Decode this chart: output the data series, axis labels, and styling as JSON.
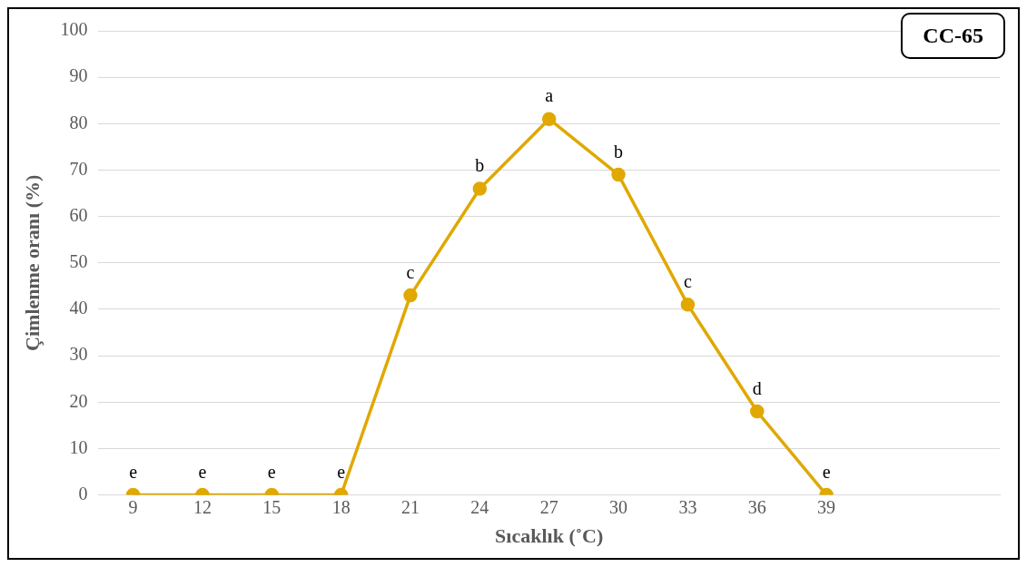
{
  "chart_data": {
    "type": "line",
    "xlabel": "Sıcaklık (˚C)",
    "ylabel": "Çimlenme oranı (%)",
    "x": [
      9,
      12,
      15,
      18,
      21,
      24,
      27,
      30,
      33,
      36,
      39
    ],
    "series": [
      {
        "color": "#e0a800",
        "values": [
          0,
          0,
          0,
          0,
          43,
          66,
          81,
          69,
          41,
          18,
          0
        ]
      }
    ],
    "xlim": [
      7.5,
      46.5
    ],
    "xticks": [
      9,
      12,
      15,
      18,
      21,
      24,
      27,
      30,
      33,
      36,
      39
    ],
    "ylim": [
      0,
      100
    ],
    "yticks": [
      0,
      10,
      20,
      30,
      40,
      50,
      60,
      70,
      80,
      90,
      100
    ],
    "grid": "y",
    "marker": "circle",
    "line_style": "solid",
    "annotations": [
      "CC-65",
      {
        "text": "e",
        "x": 9,
        "y": 0
      },
      {
        "text": "e",
        "x": 12,
        "y": 0
      },
      {
        "text": "e",
        "x": 15,
        "y": 0
      },
      {
        "text": "e",
        "x": 18,
        "y": 0
      },
      {
        "text": "c",
        "x": 21,
        "y": 43
      },
      {
        "text": "b",
        "x": 24,
        "y": 66
      },
      {
        "text": "a",
        "x": 27,
        "y": 81
      },
      {
        "text": "b",
        "x": 30,
        "y": 69
      },
      {
        "text": "c",
        "x": 33,
        "y": 41
      },
      {
        "text": "d",
        "x": 36,
        "y": 18
      },
      {
        "text": "e",
        "x": 39,
        "y": 0
      }
    ]
  }
}
